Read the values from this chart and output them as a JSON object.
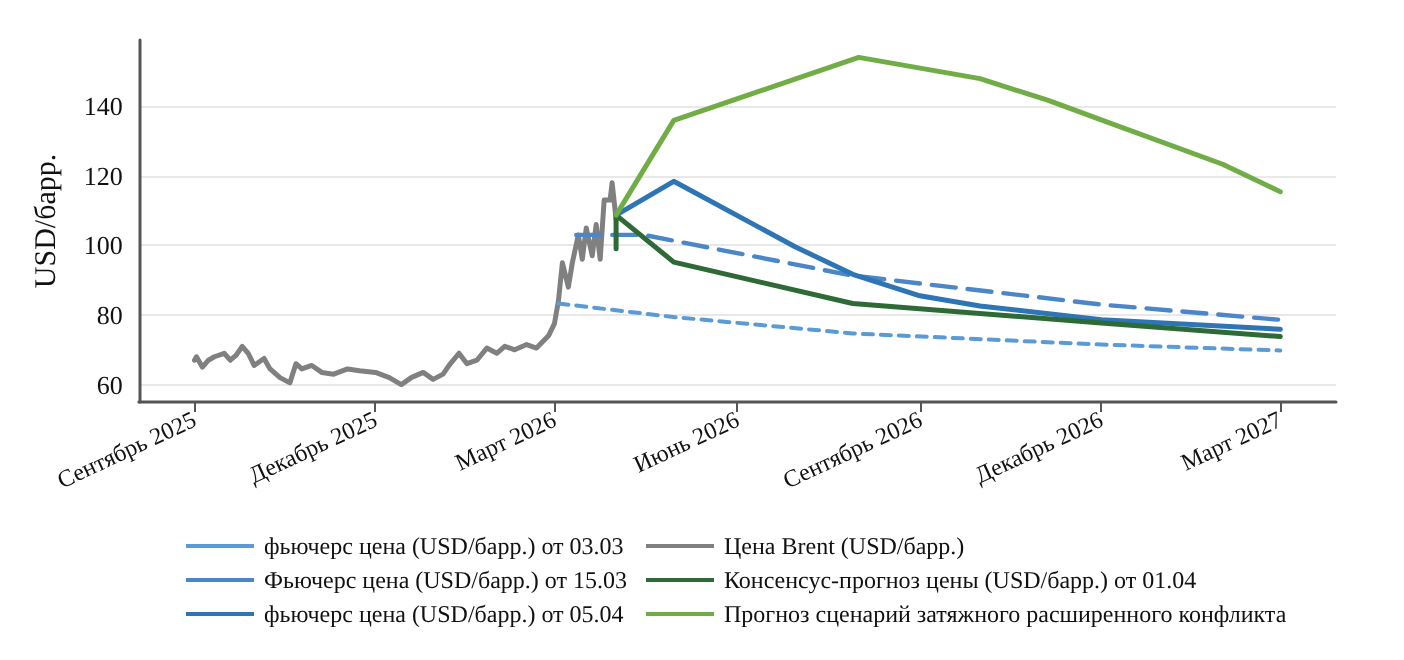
{
  "chart_data": {
    "type": "line",
    "ylabel": "USD/барр.",
    "xlim": [
      "2025-08-04",
      "2027-03-29"
    ],
    "ylim": [
      55,
      159
    ],
    "yticks": [
      60,
      80,
      100,
      120,
      140
    ],
    "xticks": [
      {
        "value": "2025-09-01",
        "label": "Сентябрь 2025"
      },
      {
        "value": "2025-12-01",
        "label": "Декабрь 2025"
      },
      {
        "value": "2026-03-01",
        "label": "Март 2026"
      },
      {
        "value": "2026-06-01",
        "label": "Июнь 2026"
      },
      {
        "value": "2026-09-01",
        "label": "Сентябрь 2026"
      },
      {
        "value": "2026-12-01",
        "label": "Декабрь 2026"
      },
      {
        "value": "2027-03-01",
        "label": "Март 2027"
      }
    ],
    "grid": "y",
    "legend": "bottom",
    "marker": "none",
    "series": [
      {
        "name": "фьючерс цена (USD/барр.) от 03.03",
        "color": "#5b9bd5",
        "line_style": "dashed",
        "x": [
          "2026-03-03",
          "2026-04-30",
          "2026-07-29",
          "2026-12-01",
          "2027-03-01"
        ],
        "values": [
          83.3,
          79.4,
          74.7,
          71.5,
          69.8
        ]
      },
      {
        "name": "Фьючерс цена (USD/барр.) от 15.03",
        "color": "#4a86c8",
        "line_style": "dashed",
        "x": [
          "2026-03-12",
          "2026-04-15",
          "2026-07-29",
          "2026-12-01",
          "2027-03-01"
        ],
        "values": [
          103,
          103,
          91.3,
          83,
          78.6
        ]
      },
      {
        "name": "фьючерс цена (USD/барр.) от 05.04",
        "color": "#2e75b6",
        "line_style": "solid",
        "x": [
          "2026-04-01",
          "2026-04-30",
          "2026-06-30",
          "2026-07-29",
          "2026-08-31",
          "2026-10-01",
          "2026-12-01",
          "2027-03-01"
        ],
        "values": [
          108.7,
          118.4,
          99.6,
          91.7,
          85.6,
          82.6,
          78.6,
          75.9
        ]
      },
      {
        "name": "Цена Brent (USD/барр.)",
        "color": "#808080",
        "line_style": "solid",
        "x": [
          "2025-09-01",
          "2025-09-02",
          "2025-09-05",
          "2025-09-08",
          "2025-09-11",
          "2025-09-16",
          "2025-09-19",
          "2025-09-22",
          "2025-09-25",
          "2025-09-28",
          "2025-10-01",
          "2025-10-06",
          "2025-10-09",
          "2025-10-14",
          "2025-10-19",
          "2025-10-22",
          "2025-10-25",
          "2025-10-30",
          "2025-11-04",
          "2025-11-10",
          "2025-11-17",
          "2025-11-23",
          "2025-12-01",
          "2025-12-08",
          "2025-12-14",
          "2025-12-19",
          "2025-12-25",
          "2025-12-30",
          "2026-01-04",
          "2026-01-07",
          "2026-01-12",
          "2026-01-16",
          "2026-01-21",
          "2026-01-26",
          "2026-01-31",
          "2026-02-04",
          "2026-02-09",
          "2026-02-15",
          "2026-02-20",
          "2026-02-26",
          "2026-03-01",
          "2026-03-03",
          "2026-03-05",
          "2026-03-08",
          "2026-03-10",
          "2026-03-13",
          "2026-03-15",
          "2026-03-17",
          "2026-03-20",
          "2026-03-22",
          "2026-03-24",
          "2026-03-26",
          "2026-03-29",
          "2026-03-30",
          "2026-04-01"
        ],
        "values": [
          67,
          68,
          65,
          67,
          68,
          69,
          67,
          68.5,
          71,
          69,
          65.5,
          67.5,
          64.5,
          62,
          60.5,
          66,
          64.5,
          65.5,
          63.5,
          63,
          64.5,
          64,
          63.5,
          62,
          60,
          62,
          63.5,
          61.5,
          63,
          65.5,
          69,
          66,
          67,
          70.5,
          69,
          71,
          70,
          71.5,
          70.5,
          74,
          77.5,
          84,
          95,
          88,
          95,
          103,
          96,
          105,
          97,
          106,
          96,
          113,
          113,
          118,
          107.5
        ]
      },
      {
        "name": "Консенсус-прогноз цены (USD/барр.) от 01.04",
        "color": "#2d6a35",
        "line_style": "solid",
        "x": [
          "2026-04-01",
          "2026-04-01",
          "2026-04-30",
          "2026-07-29",
          "2026-12-01",
          "2027-03-01"
        ],
        "values": [
          99,
          108.7,
          95.2,
          83.3,
          77.7,
          73.8
        ]
      },
      {
        "name": "Прогноз сценарий затяжного расширенного конфликта",
        "color": "#70ad47",
        "line_style": "solid",
        "x": [
          "2026-04-01",
          "2026-04-30",
          "2026-08-01",
          "2026-10-01",
          "2026-11-04",
          "2026-12-03",
          "2027-01-31",
          "2027-03-01"
        ],
        "values": [
          108.7,
          135.9,
          154,
          147.9,
          141.7,
          135.6,
          123.3,
          115.4
        ]
      }
    ]
  }
}
